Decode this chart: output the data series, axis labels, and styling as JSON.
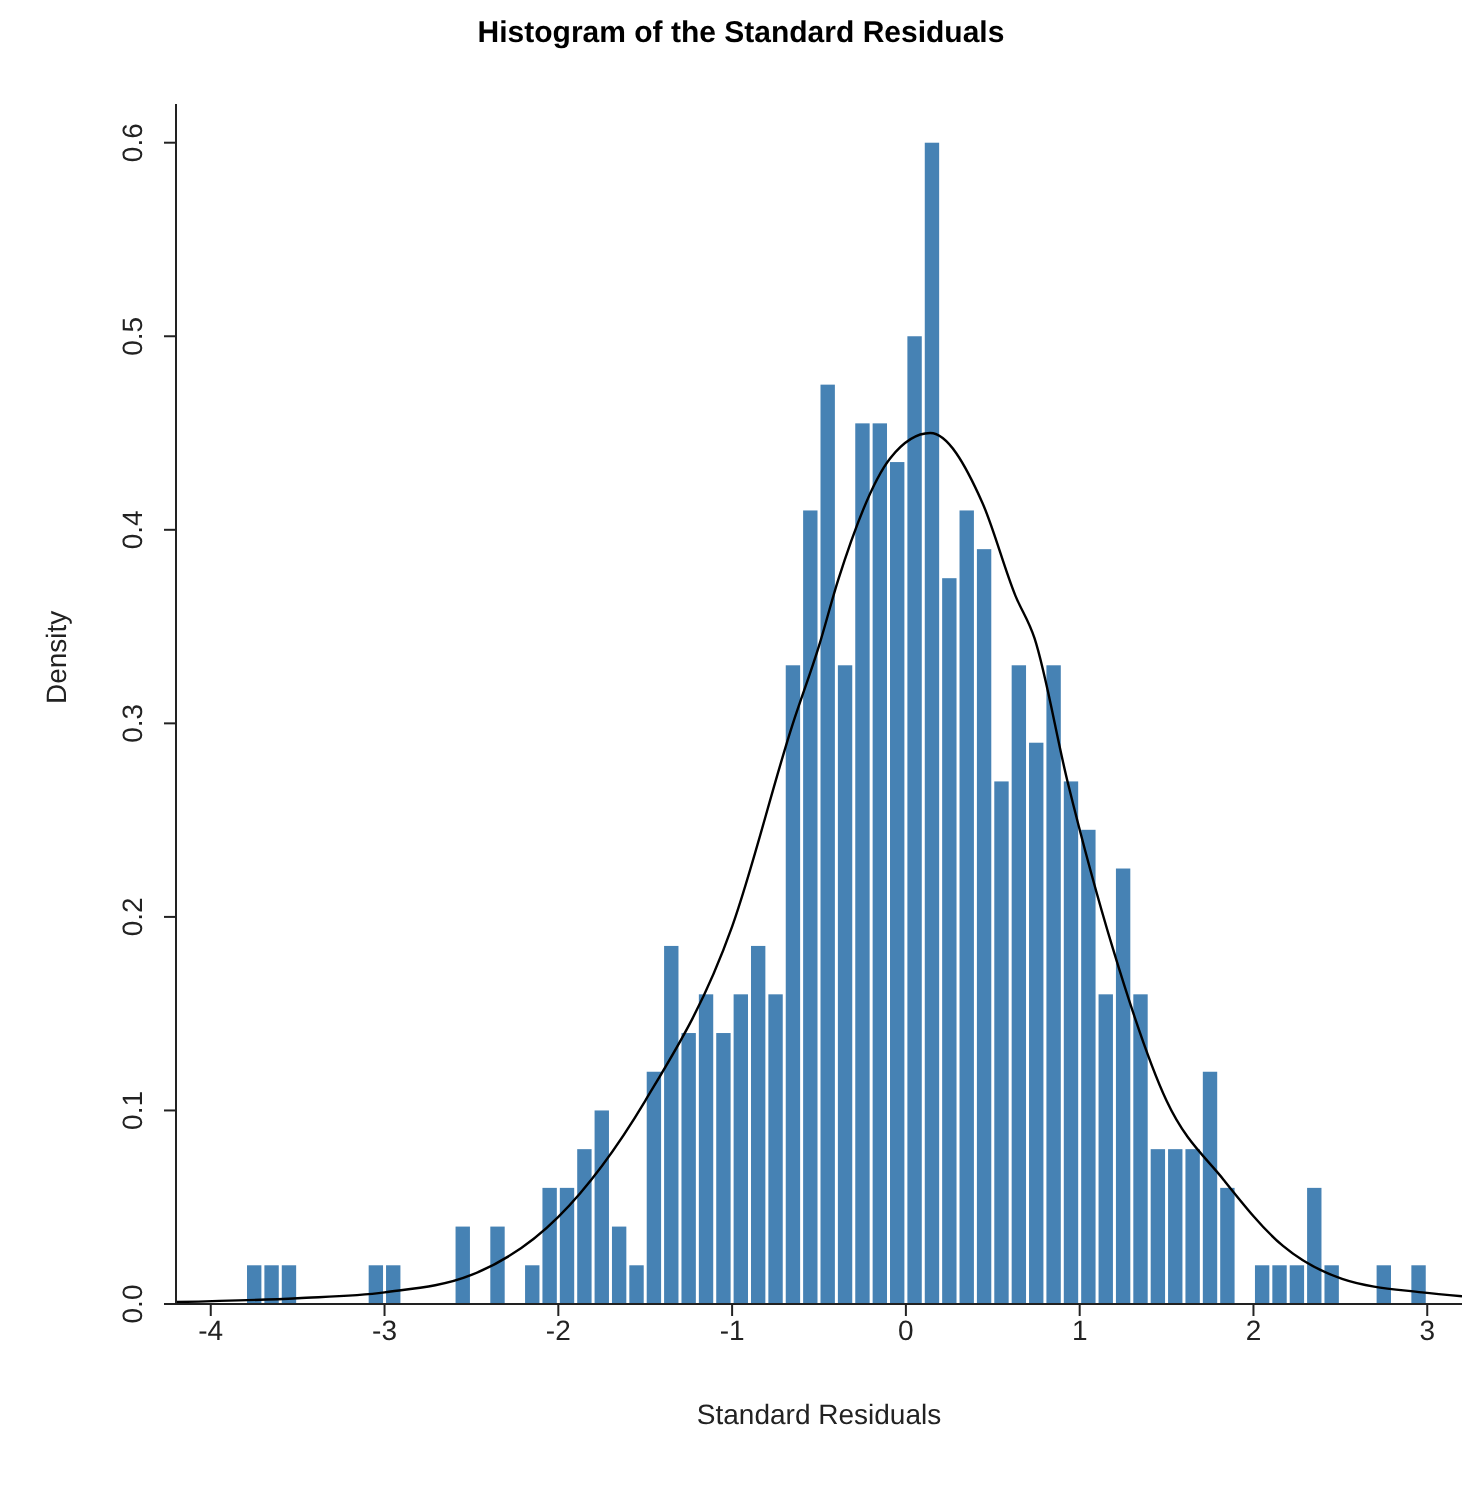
{
  "chart_data": {
    "type": "histogram",
    "title": "Histogram of the Standard Residuals",
    "xlabel": "Standard Residuals",
    "ylabel": "Density",
    "bins": [
      -3.8,
      -3.7,
      -3.6,
      -3.5,
      -3.4,
      -3.3,
      -3.2,
      -3.1,
      -3.0,
      -2.9,
      -2.8,
      -2.7,
      -2.6,
      -2.5,
      -2.4,
      -2.3,
      -2.2,
      -2.1,
      -2.0,
      -1.9,
      -1.8,
      -1.7,
      -1.6,
      -1.5,
      -1.4,
      -1.3,
      -1.2,
      -1.1,
      -1.0,
      -0.9,
      -0.8,
      -0.7,
      -0.6,
      -0.5,
      -0.4,
      -0.3,
      -0.2,
      -0.1,
      0.0,
      0.1,
      0.2,
      0.3,
      0.4,
      0.5,
      0.6,
      0.7,
      0.8,
      0.9,
      1.0,
      1.1,
      1.2,
      1.3,
      1.4,
      1.5,
      1.6,
      1.7,
      1.8,
      1.9,
      2.0,
      2.1,
      2.2,
      2.3,
      2.4,
      2.5,
      2.6,
      2.7,
      2.8,
      2.9,
      3.0
    ],
    "series": [
      {
        "color": "#4682b4",
        "values": [
          0.02,
          0.02,
          0.02,
          0,
          0,
          0,
          0,
          0.02,
          0.02,
          0,
          0,
          0,
          0.04,
          0,
          0.04,
          0,
          0.02,
          0.06,
          0.06,
          0.08,
          0.1,
          0.04,
          0.02,
          0.12,
          0.185,
          0.14,
          0.16,
          0.14,
          0.16,
          0.185,
          0.16,
          0.33,
          0.41,
          0.475,
          0.33,
          0.455,
          0.455,
          0.435,
          0.5,
          0.6,
          0.375,
          0.41,
          0.39,
          0.27,
          0.33,
          0.29,
          0.33,
          0.27,
          0.245,
          0.16,
          0.225,
          0.16,
          0.08,
          0.08,
          0.08,
          0.12,
          0.06,
          0,
          0.02,
          0.02,
          0.02,
          0.06,
          0.02,
          0,
          0,
          0.02,
          0,
          0.02
        ]
      },
      {
        "type": "line",
        "color": "#000000",
        "x": [
          -4.2,
          -3.5,
          -3.0,
          -2.5,
          -2.0,
          -1.5,
          -1.0,
          -0.65,
          -0.5,
          -0.39,
          -0.09,
          0.14,
          0.44,
          0.63,
          0.74,
          0.93,
          1.19,
          1.5,
          1.83,
          2.17,
          2.51,
          2.97,
          3.2
        ],
        "values": [
          0.001,
          0.003,
          0.006,
          0.015,
          0.045,
          0.105,
          0.195,
          0.3,
          0.34,
          0.374,
          0.437,
          0.45,
          0.414,
          0.366,
          0.344,
          0.27,
          0.184,
          0.105,
          0.064,
          0.03,
          0.013,
          0.006,
          0.004
        ]
      }
    ],
    "xlim": [
      -4.2,
      3.2
    ],
    "xticks": [
      -4,
      -3,
      -2,
      -1,
      0,
      1,
      2,
      3
    ],
    "ylim": [
      0,
      0.62
    ],
    "yticks": [
      {
        "value": 0,
        "label": "0.0"
      },
      0.1,
      0.2,
      0.3,
      0.4,
      0.5,
      0.6
    ]
  }
}
